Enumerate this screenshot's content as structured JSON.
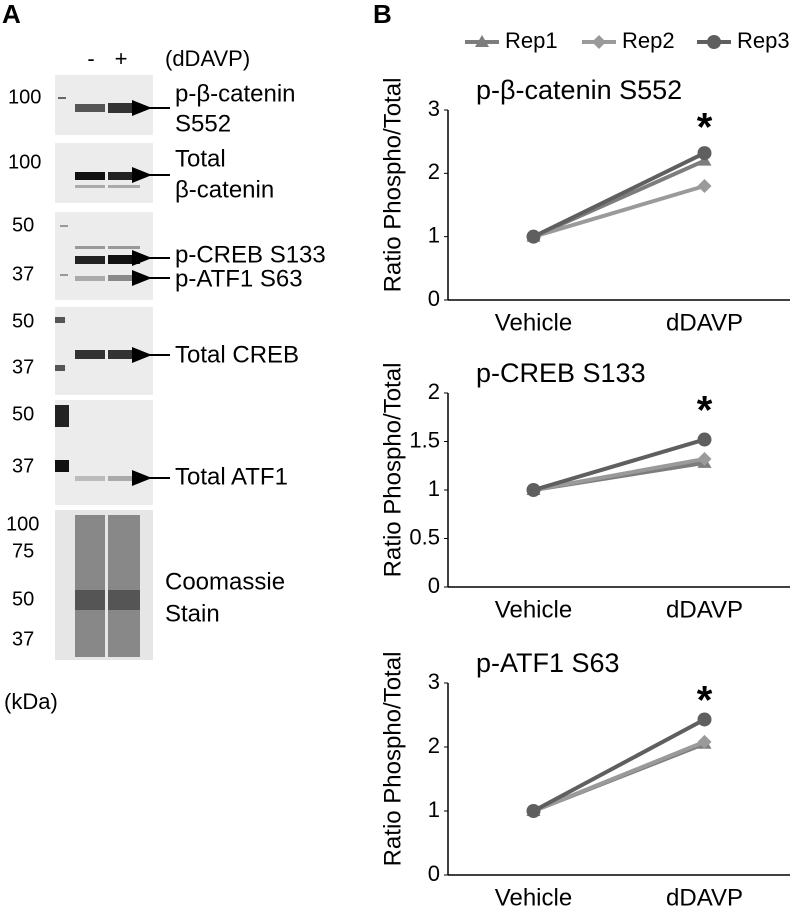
{
  "panel_a": {
    "label": "A",
    "treatment": "(dDAVP)",
    "lanes": [
      "-",
      "+"
    ],
    "blots": [
      {
        "markers": [
          100
        ],
        "labels": [
          "p-β-catenin",
          "S552"
        ]
      },
      {
        "markers": [
          100
        ],
        "labels": [
          "Total",
          "β-catenin"
        ]
      },
      {
        "markers": [
          50,
          37
        ],
        "labels": [
          "p-CREB S133",
          "p-ATF1 S63"
        ]
      },
      {
        "markers": [
          50,
          37
        ],
        "labels": [
          "Total CREB"
        ]
      },
      {
        "markers": [
          50,
          37
        ],
        "labels": [
          "Total ATF1"
        ]
      },
      {
        "markers": [
          100,
          75,
          50,
          37
        ],
        "labels": [
          "Coomassie",
          "Stain"
        ]
      }
    ],
    "unit": "(kDa)"
  },
  "panel_b": {
    "label": "B"
  },
  "chart_data": [
    {
      "type": "line",
      "title": "p-β-catenin S552",
      "ylabel": "Ratio Phospho/Total",
      "annotation": "*",
      "categories": [
        "Vehicle",
        "dDAVP"
      ],
      "ylim": [
        0,
        3
      ],
      "yticks": [
        0,
        1,
        2,
        3
      ],
      "series": [
        {
          "name": "Rep1",
          "color": "#7d7d7d",
          "marker": "triangle",
          "values": [
            1,
            2.2
          ]
        },
        {
          "name": "Rep2",
          "color": "#9a9a9a",
          "marker": "diamond",
          "values": [
            1,
            1.8
          ]
        },
        {
          "name": "Rep3",
          "color": "#5f5f5f",
          "marker": "circle",
          "values": [
            1,
            2.32
          ]
        }
      ]
    },
    {
      "type": "line",
      "title": "p-CREB S133",
      "ylabel": "Ratio Phospho/Total",
      "annotation": "*",
      "categories": [
        "Vehicle",
        "dDAVP"
      ],
      "ylim": [
        0,
        2
      ],
      "yticks": [
        0,
        0.5,
        1,
        1.5,
        2
      ],
      "series": [
        {
          "name": "Rep1",
          "color": "#7d7d7d",
          "marker": "triangle",
          "values": [
            1,
            1.28
          ]
        },
        {
          "name": "Rep2",
          "color": "#9a9a9a",
          "marker": "diamond",
          "values": [
            1,
            1.32
          ]
        },
        {
          "name": "Rep3",
          "color": "#5f5f5f",
          "marker": "circle",
          "values": [
            1,
            1.52
          ]
        }
      ]
    },
    {
      "type": "line",
      "title": "p-ATF1 S63",
      "ylabel": "Ratio Phospho/Total",
      "annotation": "*",
      "categories": [
        "Vehicle",
        "dDAVP"
      ],
      "ylim": [
        0,
        3
      ],
      "yticks": [
        0,
        1,
        2,
        3
      ],
      "series": [
        {
          "name": "Rep1",
          "color": "#7d7d7d",
          "marker": "triangle",
          "values": [
            1,
            2.05
          ]
        },
        {
          "name": "Rep2",
          "color": "#9a9a9a",
          "marker": "diamond",
          "values": [
            1,
            2.08
          ]
        },
        {
          "name": "Rep3",
          "color": "#5f5f5f",
          "marker": "circle",
          "values": [
            1,
            2.43
          ]
        }
      ]
    }
  ]
}
